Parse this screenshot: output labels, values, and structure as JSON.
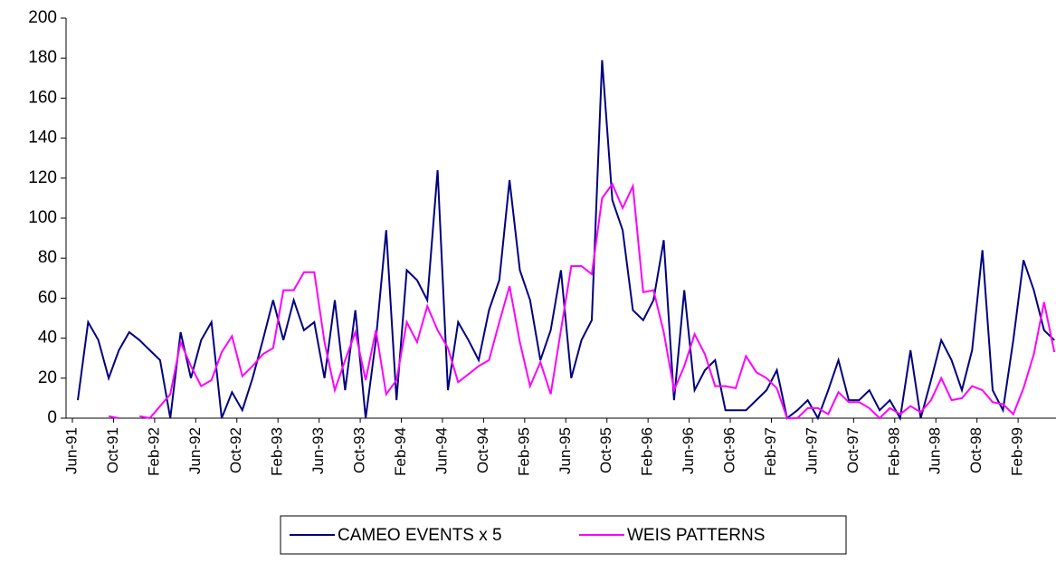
{
  "chart_data": {
    "type": "line",
    "categories": [
      "Jun-91",
      null,
      null,
      null,
      "Oct-91",
      null,
      null,
      null,
      "Feb-92",
      null,
      null,
      null,
      "Jun-92",
      null,
      null,
      null,
      "Oct-92",
      null,
      null,
      null,
      "Feb-93",
      null,
      null,
      null,
      "Jun-93",
      null,
      null,
      null,
      "Oct-93",
      null,
      null,
      null,
      "Feb-94",
      null,
      null,
      null,
      "Jun-94",
      null,
      null,
      null,
      "Oct-94",
      null,
      null,
      null,
      "Feb-95",
      null,
      null,
      null,
      "Jun-95",
      null,
      null,
      null,
      "Oct-95",
      null,
      null,
      null,
      "Feb-96",
      null,
      null,
      null,
      "Jun-96",
      null,
      null,
      null,
      "Oct-96",
      null,
      null,
      null,
      "Feb-97",
      null,
      null,
      null,
      "Jun-97",
      null,
      null,
      null,
      "Oct-97",
      null,
      null,
      null,
      "Feb-98",
      null,
      null,
      null,
      "Jun-98",
      null,
      null,
      null,
      "Oct-98",
      null,
      null,
      null,
      "Feb-99",
      null,
      null,
      null
    ],
    "series": [
      {
        "name": "CAMEO EVENTS x 5",
        "color": "#000080",
        "values": [
          9,
          48,
          39,
          20,
          34,
          43,
          39,
          34,
          29,
          0,
          43,
          20,
          39,
          48,
          0,
          13,
          4,
          20,
          39,
          59,
          39,
          59,
          44,
          48,
          20,
          59,
          14,
          54,
          0,
          39,
          94,
          9,
          74,
          69,
          59,
          124,
          14,
          48,
          39,
          29,
          54,
          69,
          119,
          74,
          59,
          29,
          44,
          74,
          20,
          39,
          49,
          179,
          109,
          94,
          54,
          49,
          59,
          89,
          9,
          64,
          14,
          24,
          29,
          4,
          4,
          4,
          9,
          14,
          24,
          0,
          4,
          9,
          0,
          14,
          29,
          9,
          9,
          14,
          4,
          9,
          0,
          34,
          0,
          19,
          39,
          29,
          14,
          34,
          84,
          14,
          4,
          39,
          79,
          64,
          44,
          39
        ]
      },
      {
        "name": "WEIS PATTERNS",
        "color": "#ff00ff",
        "values": [
          null,
          null,
          null,
          1,
          0,
          null,
          1,
          0,
          6,
          12,
          38,
          26,
          16,
          19,
          33,
          41,
          21,
          26,
          32,
          35,
          64,
          64,
          73,
          73,
          38,
          14,
          29,
          43,
          19,
          44,
          12,
          19,
          48,
          38,
          56,
          44,
          35,
          18,
          22,
          26,
          29,
          48,
          66,
          38,
          16,
          28,
          12,
          44,
          76,
          76,
          72,
          110,
          117,
          105,
          116,
          63,
          64,
          43,
          14,
          26,
          42,
          32,
          16,
          16,
          15,
          31,
          23,
          20,
          15,
          0,
          0,
          5,
          5,
          2,
          13,
          8,
          8,
          5,
          0,
          5,
          2,
          6,
          3,
          9,
          20,
          9,
          10,
          16,
          14,
          8,
          7,
          2,
          15,
          32,
          58,
          33
        ]
      }
    ],
    "ylim": [
      0,
      200
    ],
    "yticks": [
      0,
      20,
      40,
      60,
      80,
      100,
      120,
      140,
      160,
      180,
      200
    ],
    "grid": false
  }
}
